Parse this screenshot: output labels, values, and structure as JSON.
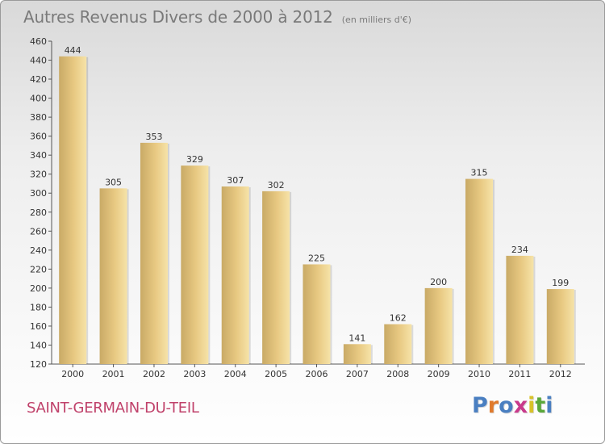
{
  "title": "Autres Revenus Divers de 2000 à 2012",
  "subtitle": "(en milliers d'€)",
  "commune": "SAINT-GERMAIN-DU-TEIL",
  "logo": {
    "text": "Proxiti",
    "colors": [
      "#4a7fc1",
      "#e07a2c",
      "#4a7fc1",
      "#c93a8c",
      "#d8c22a",
      "#5aa83a",
      "#4a7fc1"
    ]
  },
  "colors": {
    "title": "#7a7a7a",
    "commune": "#c0426b",
    "bar": "#e8c982",
    "bar_light": "#f6e3a8",
    "bar_dark": "#c9aa66"
  },
  "chart_data": {
    "type": "bar",
    "categories": [
      "2000",
      "2001",
      "2002",
      "2003",
      "2004",
      "2005",
      "2006",
      "2007",
      "2008",
      "2009",
      "2010",
      "2011",
      "2012"
    ],
    "values": [
      444,
      305,
      353,
      329,
      307,
      302,
      225,
      141,
      162,
      200,
      315,
      234,
      199
    ],
    "ylim": [
      120,
      460
    ],
    "yticks": [
      120,
      140,
      160,
      180,
      200,
      220,
      240,
      260,
      280,
      300,
      320,
      340,
      360,
      380,
      400,
      420,
      440,
      460
    ],
    "grid": false,
    "data_labels": true
  }
}
